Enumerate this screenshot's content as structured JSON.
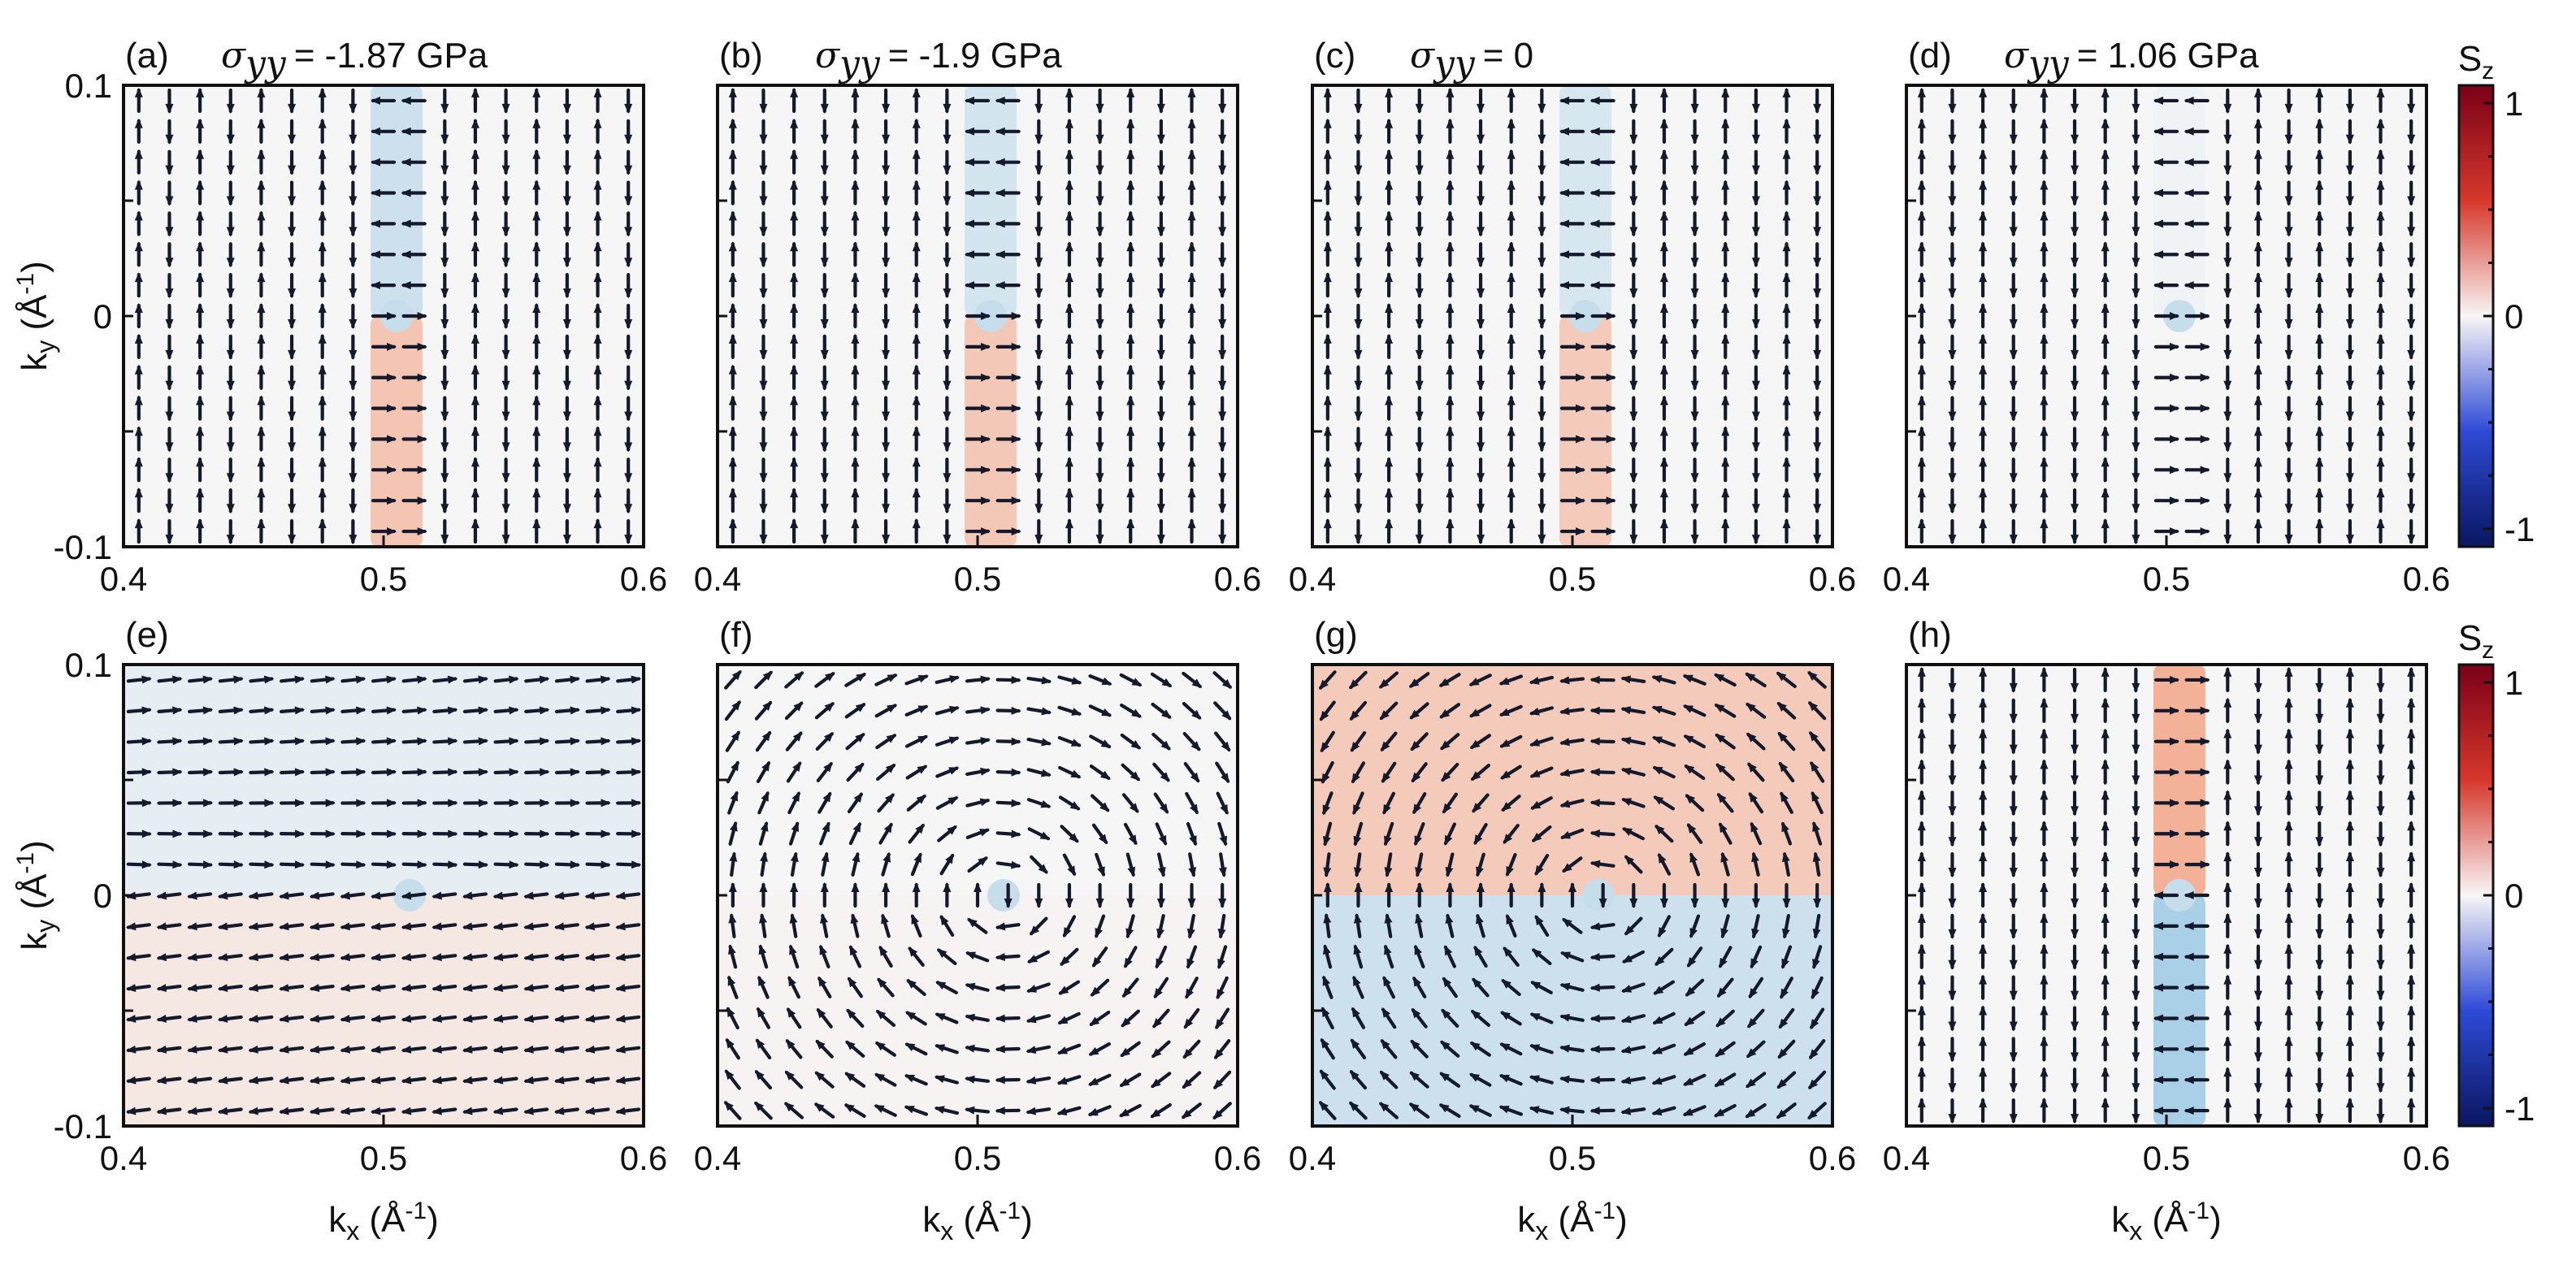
{
  "chart_data": [
    {
      "type": "vector-field",
      "panel_label": "(a)",
      "title_symbol": "σ",
      "title_subscript": "yy",
      "title_value": "= -1.87  GPa",
      "pattern": "domain_wall",
      "sz_upper": -0.22,
      "sz_lower": 0.32,
      "side_field": "vertical",
      "center_kx": 0.505,
      "xlim": [
        0.4,
        0.6
      ],
      "ylim": [
        -0.1,
        0.1
      ]
    },
    {
      "type": "vector-field",
      "panel_label": "(b)",
      "title_symbol": "σ",
      "title_subscript": "yy",
      "title_value": "= -1.9 GPa",
      "pattern": "domain_wall",
      "sz_upper": -0.18,
      "sz_lower": 0.3,
      "side_field": "vertical",
      "center_kx": 0.505,
      "xlim": [
        0.4,
        0.6
      ],
      "ylim": [
        -0.1,
        0.1
      ]
    },
    {
      "type": "vector-field",
      "panel_label": "(c)",
      "title_symbol": "σ",
      "title_subscript": "yy",
      "title_value": "= 0",
      "pattern": "domain_wall",
      "sz_upper": -0.16,
      "sz_lower": 0.28,
      "side_field": "vertical",
      "center_kx": 0.505,
      "xlim": [
        0.4,
        0.6
      ],
      "ylim": [
        -0.1,
        0.1
      ]
    },
    {
      "type": "vector-field",
      "panel_label": "(d)",
      "title_symbol": "σ",
      "title_subscript": "yy",
      "title_value": "= 1.06 GPa",
      "pattern": "weak_wall",
      "sz_upper": -0.03,
      "sz_lower": 0.0,
      "side_field": "vertical",
      "center_kx": 0.505,
      "xlim": [
        0.4,
        0.6
      ],
      "ylim": [
        -0.1,
        0.1
      ]
    },
    {
      "type": "vector-field",
      "panel_label": "(e)",
      "title_symbol": "",
      "title_subscript": "",
      "title_value": "",
      "pattern": "horizontal_flow",
      "sz_upper": -0.08,
      "sz_lower": 0.09,
      "side_field": "horizontal",
      "center_kx": 0.51,
      "xlim": [
        0.4,
        0.6
      ],
      "ylim": [
        -0.1,
        0.1
      ]
    },
    {
      "type": "vector-field",
      "panel_label": "(f)",
      "title_symbol": "",
      "title_subscript": "",
      "title_value": "",
      "pattern": "vortex",
      "sz_upper": 0.0,
      "sz_lower": 0.02,
      "side_field": "circular",
      "center_kx": 0.51,
      "xlim": [
        0.4,
        0.6
      ],
      "ylim": [
        -0.1,
        0.1
      ]
    },
    {
      "type": "vector-field",
      "panel_label": "(g)",
      "title_symbol": "",
      "title_subscript": "",
      "title_value": "",
      "pattern": "split_vortex",
      "sz_upper": 0.28,
      "sz_lower": -0.22,
      "side_field": "circular",
      "center_kx": 0.51,
      "xlim": [
        0.4,
        0.6
      ],
      "ylim": [
        -0.1,
        0.1
      ]
    },
    {
      "type": "vector-field",
      "panel_label": "(h)",
      "title_symbol": "",
      "title_subscript": "",
      "title_value": "",
      "pattern": "domain_wall_inverted",
      "sz_upper": 0.45,
      "sz_lower": -0.4,
      "side_field": "vertical",
      "center_kx": 0.505,
      "xlim": [
        0.4,
        0.6
      ],
      "ylim": [
        -0.1,
        0.1
      ]
    }
  ],
  "axes": {
    "xlabel_main": "k",
    "xlabel_sub": "x",
    "xlabel_unit": " (Å",
    "xlabel_exp": "-1",
    "xlabel_close": ")",
    "ylabel_main": "k",
    "ylabel_sub": "y",
    "ylabel_unit": " (Å",
    "ylabel_exp": "-1",
    "ylabel_close": ")",
    "x_ticks": [
      "0.4",
      "0.5",
      "0.6"
    ],
    "y_ticks": [
      "0.1",
      "0",
      "-0.1"
    ]
  },
  "colorbar": {
    "label_main": "S",
    "label_sub": "z",
    "ticks": [
      "1",
      "0",
      "-1"
    ],
    "colors": [
      "#7a0018",
      "#d6382b",
      "#f8f6f6",
      "#2e4ad6",
      "#0a1660"
    ]
  }
}
